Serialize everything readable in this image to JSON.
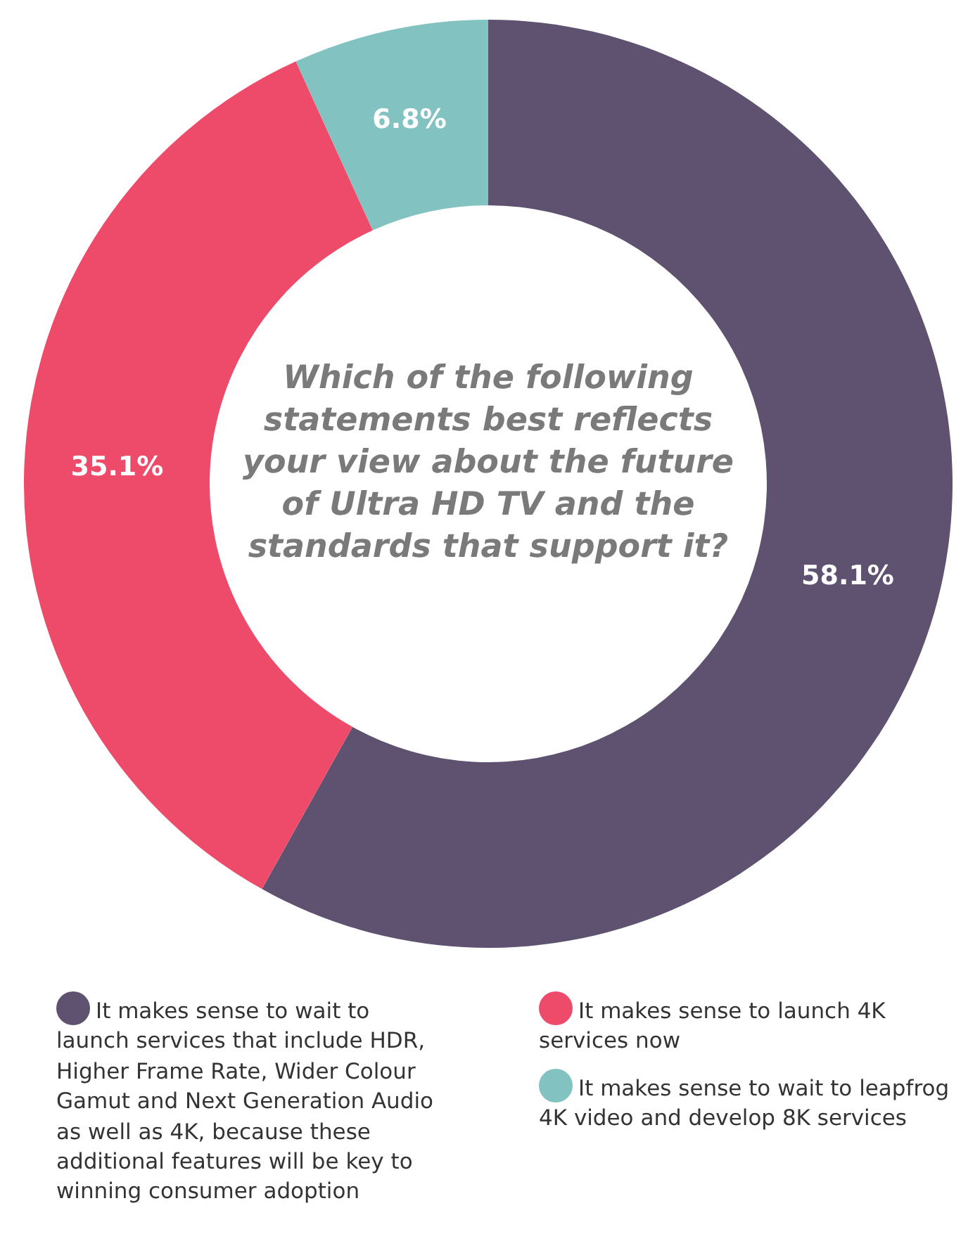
{
  "chart_data": {
    "type": "donut",
    "title": "Which of the following statements best reflects your view about the future of Ultra HD TV and the standards that support it?",
    "categories": [
      "It makes sense to wait to launch services that include HDR, Higher Frame Rate, Wider Colour Gamut and Next Generation Audio as well as 4K, because these additional features will be key to winning consumer adoption",
      "It makes sense to launch 4K services now",
      "It makes sense to wait to leapfrog 4K video and develop 8K services"
    ],
    "values": [
      58.1,
      35.1,
      6.8
    ],
    "colors": [
      "#5e5270",
      "#ee4a6a",
      "#82c3c2"
    ],
    "value_labels": [
      "58.1%",
      "35.1%",
      "6.8%"
    ],
    "legend": "bottom"
  }
}
